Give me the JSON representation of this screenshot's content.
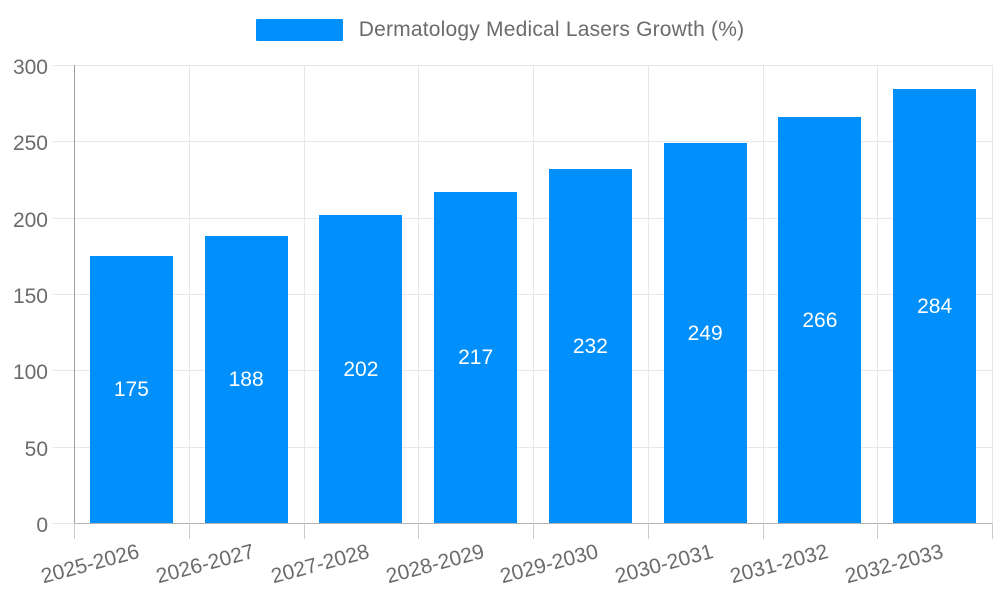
{
  "legend": {
    "label": "Dermatology Medical Lasers Growth (%)",
    "swatch_color": "#008FFB"
  },
  "chart_data": {
    "type": "bar",
    "title": "Dermatology Medical Lasers Growth (%)",
    "categories": [
      "2025-2026",
      "2026-2027",
      "2027-2028",
      "2028-2029",
      "2029-2030",
      "2030-2031",
      "2031-2032",
      "2032-2033"
    ],
    "values": [
      175,
      188,
      202,
      217,
      232,
      249,
      266,
      284
    ],
    "series_name": "Dermatology Medical Lasers Growth (%)",
    "xlabel": "",
    "ylabel": "",
    "ylim": [
      0,
      300
    ],
    "yticks": [
      0,
      50,
      100,
      150,
      200,
      250,
      300
    ],
    "grid": true,
    "legend_position": "top",
    "bar_color": "#008FFB",
    "data_label_color": "#ffffff",
    "axis_label_color": "#6b6b6b",
    "gridline_color": "#e7e7e7"
  }
}
